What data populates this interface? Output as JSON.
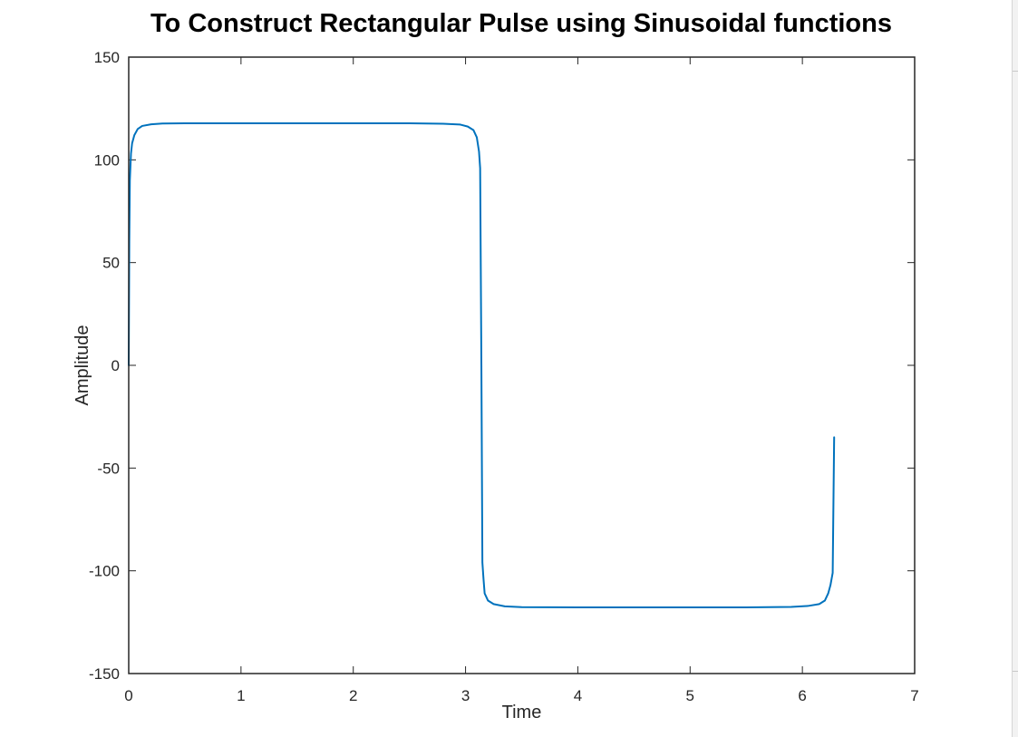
{
  "chart_data": {
    "type": "line",
    "title": "To Construct Rectangular Pulse using Sinusoidal functions",
    "xlabel": "Time",
    "ylabel": "Amplitude",
    "xlim": [
      0,
      7
    ],
    "ylim": [
      -150,
      150
    ],
    "x_ticks": [
      "0",
      "1",
      "2",
      "3",
      "4",
      "5",
      "6",
      "7"
    ],
    "y_ticks": [
      "150",
      "100",
      "50",
      "0",
      "-50",
      "-100",
      "-150"
    ],
    "grid": false,
    "legend": "none",
    "series": [
      {
        "color": "#0072BD",
        "x": [
          0,
          0.005,
          0.01,
          0.02,
          0.03,
          0.05,
          0.08,
          0.12,
          0.2,
          0.3,
          0.5,
          1.0,
          1.5,
          2.0,
          2.5,
          2.8,
          2.95,
          3.02,
          3.07,
          3.1,
          3.12,
          3.13,
          3.141,
          3.15,
          3.16,
          3.17,
          3.2,
          3.25,
          3.35,
          3.5,
          4.0,
          4.5,
          5.0,
          5.5,
          5.9,
          6.05,
          6.15,
          6.2,
          6.23,
          6.25,
          6.27,
          6.283
        ],
        "y": [
          0,
          60,
          90,
          103,
          108,
          112,
          115,
          116.5,
          117.3,
          117.7,
          117.8,
          117.8,
          117.8,
          117.8,
          117.8,
          117.6,
          117.2,
          116.2,
          114.5,
          111,
          104,
          96,
          0,
          -96,
          -104,
          -111,
          -114.5,
          -116.2,
          -117.3,
          -117.7,
          -117.8,
          -117.8,
          -117.8,
          -117.8,
          -117.6,
          -117.1,
          -116.2,
          -114.5,
          -111,
          -107,
          -101,
          -35
        ]
      }
    ]
  }
}
